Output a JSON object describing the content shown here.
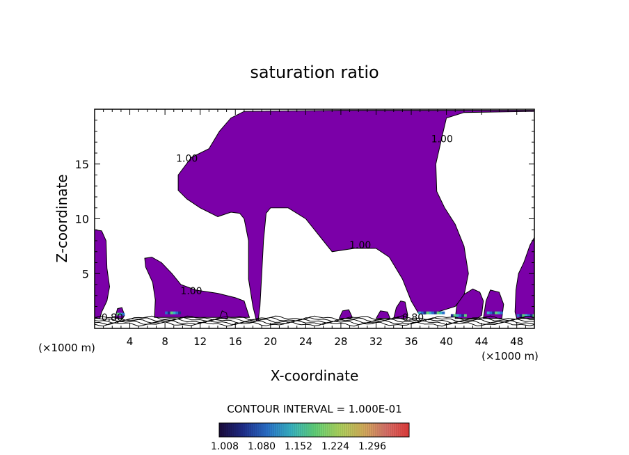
{
  "chart_data": {
    "type": "contour",
    "title": "saturation ratio",
    "xlabel": "X-coordinate",
    "ylabel": "Z-coordinate",
    "x_unit_left": "(×1000 m)",
    "x_unit_right": "(×1000 m)",
    "xlim": [
      0,
      50
    ],
    "ylim": [
      0,
      20
    ],
    "x_ticks": [
      4,
      8,
      12,
      16,
      20,
      24,
      28,
      32,
      36,
      40,
      44,
      48
    ],
    "y_ticks": [
      5,
      10,
      15
    ],
    "fill_color": "#7b00a8",
    "contour_labels": [
      {
        "text": "1.00",
        "x": 10.5,
        "y": 15.2
      },
      {
        "text": "1.00",
        "x": 39.5,
        "y": 17.0
      },
      {
        "text": "1.00",
        "x": 30.2,
        "y": 7.3
      },
      {
        "text": "1.00",
        "x": 11.0,
        "y": 3.1
      },
      {
        "text": "0.80",
        "x": 2.0,
        "y": 0.7
      },
      {
        "text": "0.80",
        "x": 36.2,
        "y": 0.7
      }
    ],
    "region_main": [
      [
        18.4,
        0.7
      ],
      [
        18.0,
        2.0
      ],
      [
        17.5,
        4.5
      ],
      [
        17.5,
        8.0
      ],
      [
        17.0,
        10.0
      ],
      [
        16.5,
        10.5
      ],
      [
        15.5,
        10.6
      ],
      [
        14.0,
        10.2
      ],
      [
        12.0,
        11.0
      ],
      [
        10.5,
        11.8
      ],
      [
        9.5,
        12.6
      ],
      [
        9.5,
        14.0
      ],
      [
        11.0,
        15.6
      ],
      [
        13.0,
        16.4
      ],
      [
        14.2,
        18.0
      ],
      [
        15.5,
        19.2
      ],
      [
        17.0,
        19.8
      ],
      [
        28.0,
        19.9
      ],
      [
        50.0,
        19.9
      ],
      [
        50.0,
        19.8
      ],
      [
        42.0,
        19.7
      ],
      [
        40.0,
        19.2
      ],
      [
        39.5,
        17.5
      ],
      [
        38.8,
        15.0
      ],
      [
        38.9,
        12.5
      ],
      [
        39.8,
        11.0
      ],
      [
        41.0,
        9.5
      ],
      [
        42.0,
        7.5
      ],
      [
        42.5,
        5.0
      ],
      [
        42.0,
        3.0
      ],
      [
        41.0,
        2.0
      ],
      [
        39.0,
        1.5
      ],
      [
        37.5,
        1.3
      ],
      [
        36.8,
        1.4
      ],
      [
        36.0,
        2.5
      ],
      [
        35.0,
        4.5
      ],
      [
        33.5,
        6.5
      ],
      [
        32.0,
        7.3
      ],
      [
        29.5,
        7.3
      ],
      [
        27.0,
        7.0
      ],
      [
        26.0,
        8.0
      ],
      [
        24.0,
        10.0
      ],
      [
        22.0,
        11.0
      ],
      [
        20.0,
        11.0
      ],
      [
        19.5,
        10.5
      ],
      [
        19.2,
        8.0
      ],
      [
        19.0,
        5.0
      ],
      [
        18.8,
        2.0
      ],
      [
        18.6,
        0.7
      ]
    ],
    "region_left_arm": [
      [
        6.8,
        1.0
      ],
      [
        6.9,
        2.6
      ],
      [
        6.6,
        4.2
      ],
      [
        5.8,
        5.6
      ],
      [
        5.7,
        6.4
      ],
      [
        6.5,
        6.5
      ],
      [
        7.6,
        6.0
      ],
      [
        8.8,
        5.0
      ],
      [
        9.8,
        4.0
      ],
      [
        11.5,
        3.5
      ],
      [
        14.0,
        3.2
      ],
      [
        16.0,
        2.8
      ],
      [
        17.0,
        2.5
      ],
      [
        17.6,
        1.0
      ]
    ],
    "region_left_edge": [
      [
        0.0,
        0.9
      ],
      [
        0.0,
        9.0
      ],
      [
        0.8,
        8.9
      ],
      [
        1.3,
        8.0
      ],
      [
        1.4,
        5.5
      ],
      [
        1.7,
        3.8
      ],
      [
        1.4,
        2.5
      ],
      [
        0.8,
        1.5
      ],
      [
        0.6,
        0.9
      ]
    ],
    "region_right_edge": [
      [
        50.0,
        0.9
      ],
      [
        50.0,
        8.3
      ],
      [
        49.5,
        7.6
      ],
      [
        48.8,
        6.0
      ],
      [
        48.2,
        5.0
      ],
      [
        47.9,
        3.5
      ],
      [
        47.8,
        1.5
      ],
      [
        48.0,
        0.9
      ]
    ],
    "small_blobs": [
      [
        [
          2.3,
          0.9
        ],
        [
          2.6,
          1.8
        ],
        [
          3.1,
          1.9
        ],
        [
          3.4,
          1.2
        ],
        [
          3.2,
          0.9
        ]
      ],
      [
        [
          14.2,
          0.9
        ],
        [
          14.5,
          1.6
        ],
        [
          15.0,
          1.4
        ],
        [
          15.1,
          0.9
        ]
      ],
      [
        [
          27.8,
          0.9
        ],
        [
          28.2,
          1.6
        ],
        [
          28.9,
          1.7
        ],
        [
          29.3,
          1.0
        ],
        [
          29.0,
          0.9
        ]
      ],
      [
        [
          32.0,
          0.9
        ],
        [
          32.5,
          1.6
        ],
        [
          33.3,
          1.5
        ],
        [
          33.6,
          0.9
        ]
      ],
      [
        [
          34.0,
          0.9
        ],
        [
          34.3,
          1.9
        ],
        [
          34.8,
          2.5
        ],
        [
          35.3,
          2.4
        ],
        [
          35.6,
          1.2
        ],
        [
          35.4,
          0.9
        ]
      ],
      [
        [
          41.0,
          0.9
        ],
        [
          41.2,
          2.2
        ],
        [
          42.0,
          3.1
        ],
        [
          43.0,
          3.6
        ],
        [
          43.8,
          3.3
        ],
        [
          44.2,
          2.5
        ],
        [
          44.0,
          1.2
        ],
        [
          43.5,
          0.9
        ]
      ],
      [
        [
          44.2,
          0.9
        ],
        [
          44.5,
          2.5
        ],
        [
          45.0,
          3.5
        ],
        [
          46.0,
          3.3
        ],
        [
          46.5,
          2.2
        ],
        [
          46.3,
          0.9
        ]
      ]
    ],
    "colorbar": {
      "title": "CONTOUR INTERVAL = 1.000E-01",
      "tick_labels": [
        "1.008",
        "1.080",
        "1.152",
        "1.224",
        "1.296"
      ],
      "stops": [
        "#1a0a3a",
        "#1f2d8a",
        "#2a6fc9",
        "#37b2c4",
        "#5fd07a",
        "#a9d45e",
        "#d2b15a",
        "#d8736a",
        "#e23b3b"
      ]
    }
  }
}
